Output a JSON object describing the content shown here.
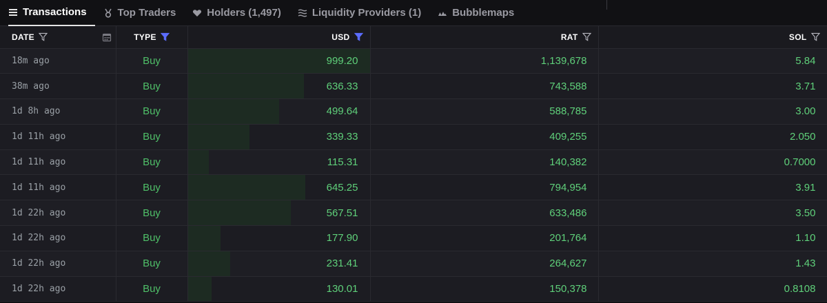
{
  "tabs": [
    {
      "label": "Transactions",
      "icon": "list-icon",
      "active": true
    },
    {
      "label": "Top Traders",
      "icon": "medal-icon",
      "active": false
    },
    {
      "label": "Holders (1,497)",
      "icon": "heart-icon",
      "active": false
    },
    {
      "label": "Liquidity Providers (1)",
      "icon": "waves-icon",
      "active": false
    },
    {
      "label": "Bubblemaps",
      "icon": "bubblemaps-icon",
      "active": false
    }
  ],
  "columns": {
    "date": "DATE",
    "type": "TYPE",
    "usd": "USD",
    "rat": "RAT",
    "sol": "SOL"
  },
  "colors": {
    "buy": "#4fbf68",
    "value": "#5fd07a",
    "active_filter": "#5b6cff",
    "bar": "#1d2b22"
  },
  "usd_bar_max": 999.2,
  "rows": [
    {
      "date": "18m ago",
      "type": "Buy",
      "usd": "999.20",
      "usd_value": 999.2,
      "rat": "1,139,678",
      "sol": "5.84"
    },
    {
      "date": "38m ago",
      "type": "Buy",
      "usd": "636.33",
      "usd_value": 636.33,
      "rat": "743,588",
      "sol": "3.71"
    },
    {
      "date": "1d 8h ago",
      "type": "Buy",
      "usd": "499.64",
      "usd_value": 499.64,
      "rat": "588,785",
      "sol": "3.00"
    },
    {
      "date": "1d 11h ago",
      "type": "Buy",
      "usd": "339.33",
      "usd_value": 339.33,
      "rat": "409,255",
      "sol": "2.050"
    },
    {
      "date": "1d 11h ago",
      "type": "Buy",
      "usd": "115.31",
      "usd_value": 115.31,
      "rat": "140,382",
      "sol": "0.7000"
    },
    {
      "date": "1d 11h ago",
      "type": "Buy",
      "usd": "645.25",
      "usd_value": 645.25,
      "rat": "794,954",
      "sol": "3.91"
    },
    {
      "date": "1d 22h ago",
      "type": "Buy",
      "usd": "567.51",
      "usd_value": 567.51,
      "rat": "633,486",
      "sol": "3.50"
    },
    {
      "date": "1d 22h ago",
      "type": "Buy",
      "usd": "177.90",
      "usd_value": 177.9,
      "rat": "201,764",
      "sol": "1.10"
    },
    {
      "date": "1d 22h ago",
      "type": "Buy",
      "usd": "231.41",
      "usd_value": 231.41,
      "rat": "264,627",
      "sol": "1.43"
    },
    {
      "date": "1d 22h ago",
      "type": "Buy",
      "usd": "130.01",
      "usd_value": 130.01,
      "rat": "150,378",
      "sol": "0.8108"
    }
  ]
}
